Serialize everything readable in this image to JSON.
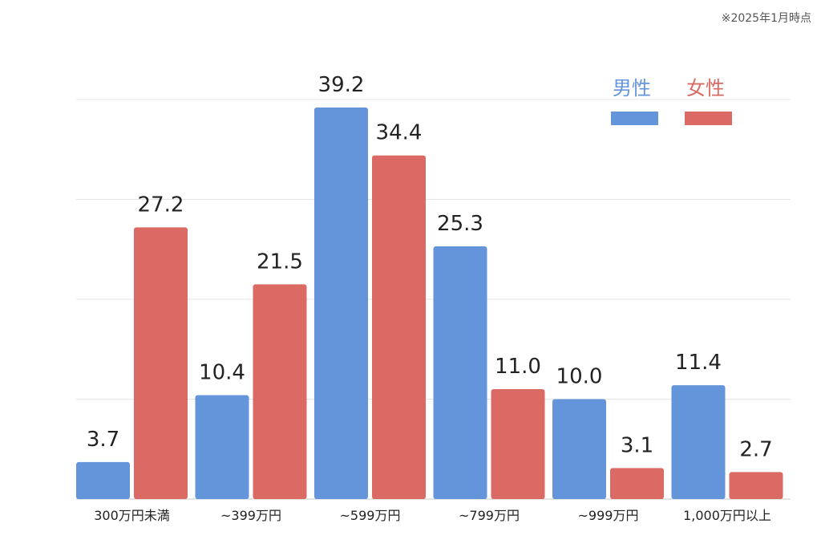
{
  "note": "※2025年1月時点",
  "colors": {
    "male": "#6495DB",
    "female": "#DA6A63",
    "grid": "#E4E4E4",
    "axis": "#C8C8C8",
    "text": "#222222"
  },
  "chart_data": {
    "type": "bar",
    "title": "",
    "xlabel": "",
    "ylabel": "",
    "ylim": [
      0,
      40
    ],
    "grid": true,
    "legend_position": "top-right",
    "categories": [
      "300万円未満",
      "~399万円",
      "~599万円",
      "~799万円",
      "~999万円",
      "1,000万円以上"
    ],
    "series": [
      {
        "name": "男性",
        "values": [
          3.7,
          10.4,
          39.2,
          25.3,
          10.0,
          11.4
        ],
        "labels": [
          "3.7",
          "10.4",
          "39.2",
          "25.3",
          "10.0",
          "11.4"
        ]
      },
      {
        "name": "女性",
        "values": [
          27.2,
          21.5,
          34.4,
          11.0,
          3.1,
          2.7
        ],
        "labels": [
          "27.2",
          "21.5",
          "34.4",
          "11.0",
          "3.1",
          "2.7"
        ]
      }
    ]
  }
}
